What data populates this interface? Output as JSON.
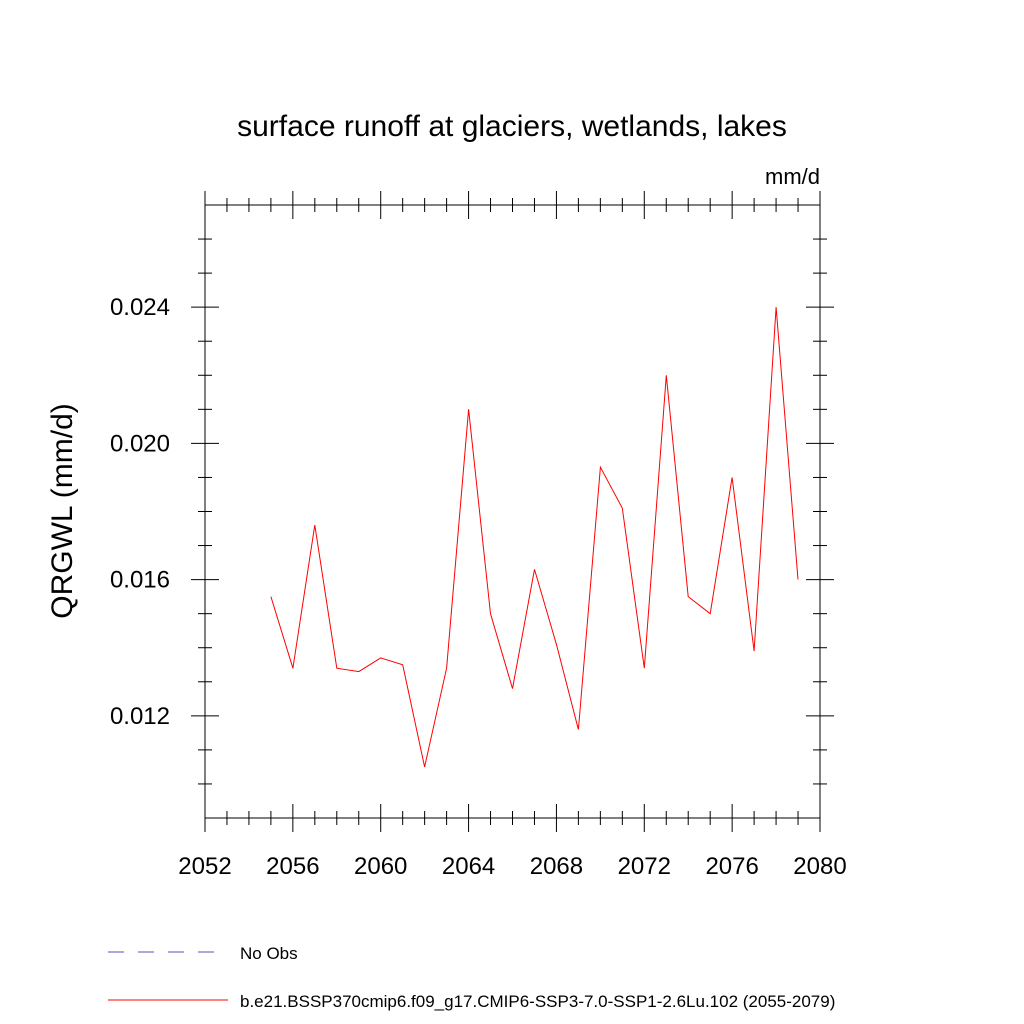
{
  "chart_data": {
    "type": "line",
    "title": "surface runoff at glaciers, wetlands, lakes",
    "units_label": "mm/d",
    "ylabel": "QRGWL  (mm/d)",
    "xlabel": "",
    "xlim": [
      2052,
      2080
    ],
    "ylim": [
      0.009,
      0.027
    ],
    "x_ticks": [
      2052,
      2056,
      2060,
      2064,
      2068,
      2072,
      2076,
      2080
    ],
    "x_tick_labels": [
      "2052",
      "2056",
      "2060",
      "2064",
      "2068",
      "2072",
      "2076",
      "2080"
    ],
    "y_ticks": [
      0.012,
      0.016,
      0.02,
      0.024
    ],
    "y_tick_labels": [
      "0.012",
      "0.016",
      "0.020",
      "0.024"
    ],
    "grid": false,
    "legend_position": "bottom",
    "series": [
      {
        "name": "b.e21.BSSP370cmip6.f09_g17.CMIP6-SSP3-7.0-SSP1-2.6Lu.102 (2055-2079)",
        "color": "#ff0000",
        "x": [
          2055,
          2056,
          2057,
          2058,
          2059,
          2060,
          2061,
          2062,
          2063,
          2064,
          2065,
          2066,
          2067,
          2068,
          2069,
          2070,
          2071,
          2072,
          2073,
          2074,
          2075,
          2076,
          2077,
          2078,
          2079
        ],
        "y": [
          0.0155,
          0.0134,
          0.0176,
          0.0134,
          0.0133,
          0.0137,
          0.0135,
          0.0105,
          0.0134,
          0.021,
          0.015,
          0.0128,
          0.0163,
          0.0141,
          0.0116,
          0.0193,
          0.0181,
          0.0134,
          0.022,
          0.0155,
          0.015,
          0.019,
          0.0139,
          0.024,
          0.016
        ]
      }
    ],
    "legend": [
      {
        "label": "No Obs",
        "color": "#5a4fbf",
        "style": "dashed"
      },
      {
        "label": "b.e21.BSSP370cmip6.f09_g17.CMIP6-SSP3-7.0-SSP1-2.6Lu.102 (2055-2079)",
        "color": "#ff0000",
        "style": "solid"
      }
    ]
  }
}
